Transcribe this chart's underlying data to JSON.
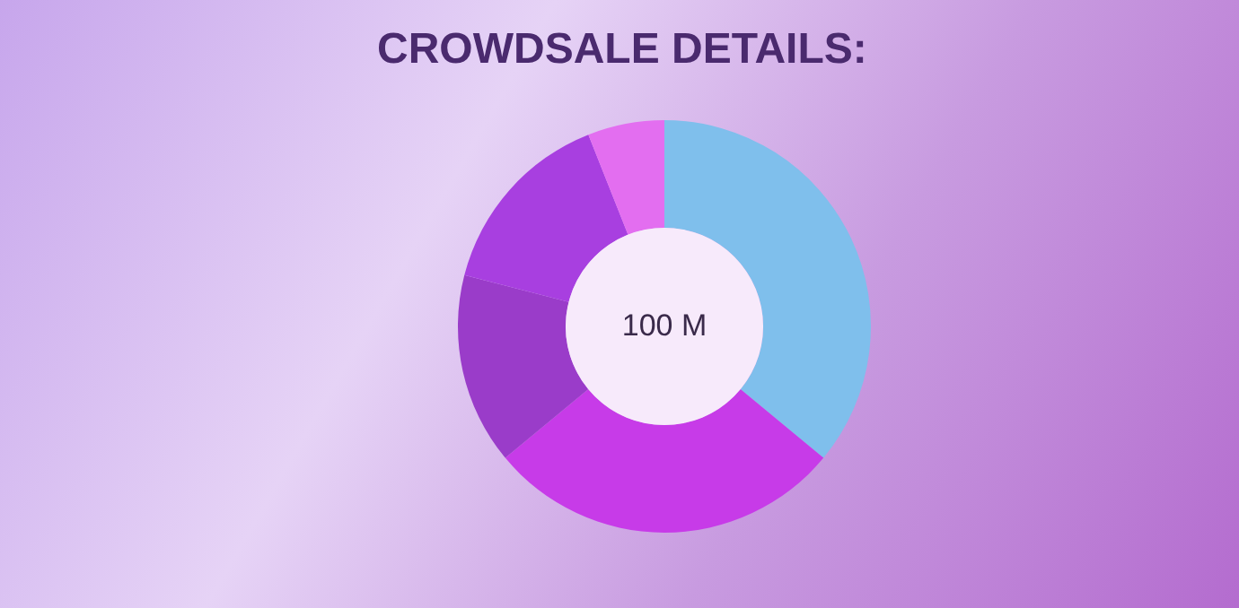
{
  "chart_data": {
    "type": "donut",
    "title": "CROWDSALE DETAILS:",
    "categories": [
      null,
      null,
      null,
      null,
      null
    ],
    "values": [
      36,
      28,
      15,
      15,
      6
    ],
    "colors": [
      "#7fbfec",
      "#c73be8",
      "#9a3cc9",
      "#a83fe0",
      "#e36ef0"
    ],
    "annotations": [
      "100 M"
    ],
    "legend": false
  }
}
